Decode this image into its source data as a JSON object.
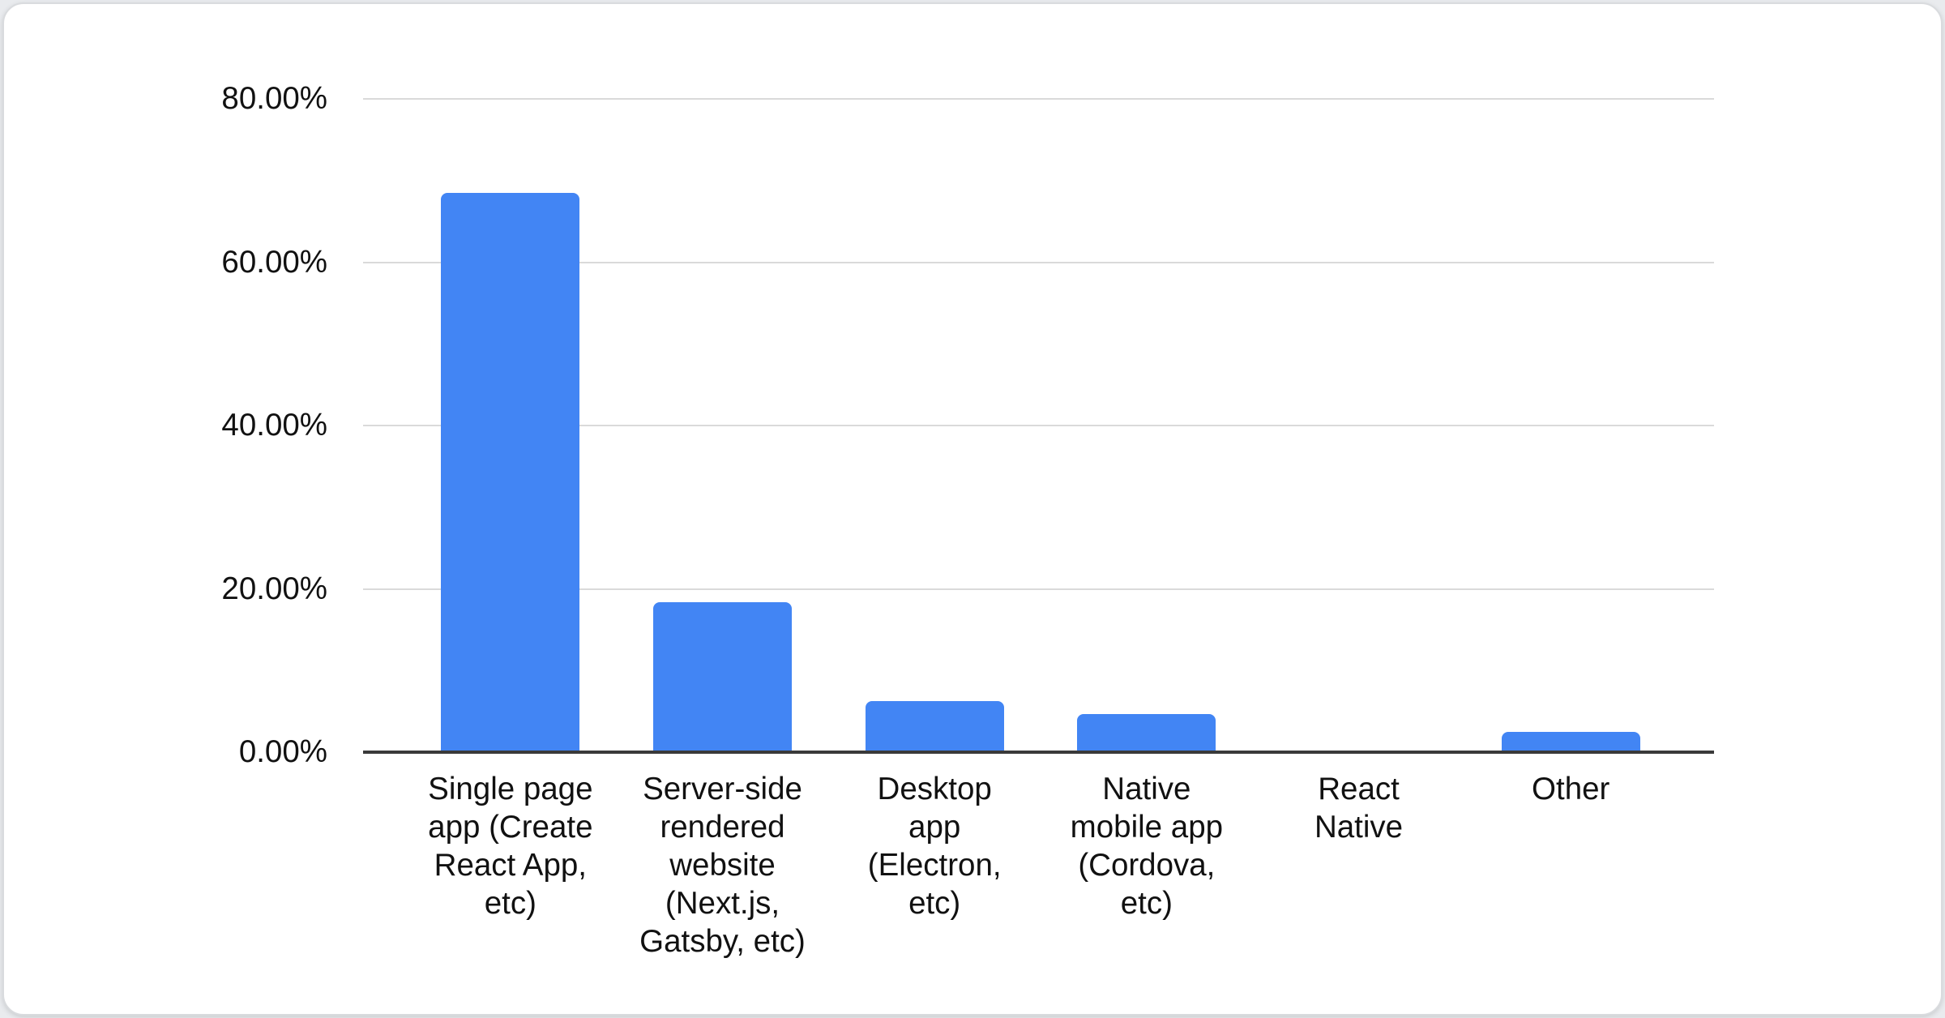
{
  "page": {
    "background_color": "#e9ebee"
  },
  "card": {
    "background_color": "#ffffff",
    "border_color": "#d9dbde"
  },
  "chart_data": {
    "type": "bar",
    "title": "",
    "xlabel": "",
    "ylabel": "",
    "legend": "none",
    "grid": true,
    "ylim": [
      0,
      80
    ],
    "bar_color": "#4285f4",
    "gridline_color": "#dadada",
    "axis_line_color": "#3a3a3a",
    "label_color": "#111111",
    "yticks": [
      {
        "value": 80,
        "label": "80.00%"
      },
      {
        "value": 60,
        "label": "60.00%"
      },
      {
        "value": 40,
        "label": "40.00%"
      },
      {
        "value": 20,
        "label": "20.00%"
      },
      {
        "value": 0,
        "label": "0.00%"
      }
    ],
    "categories": [
      "Single page app (Create React App, etc)",
      "Server-side rendered website (Next.js, Gatsby, etc)",
      "Desktop app (Electron, etc)",
      "Native mobile app (Cordova, etc)",
      "React Native",
      "Other"
    ],
    "category_lines": [
      [
        "Single page",
        "app (Create",
        "React App,",
        "etc)"
      ],
      [
        "Server-side",
        "rendered",
        "website",
        "(Next.js,",
        "Gatsby, etc)"
      ],
      [
        "Desktop",
        "app",
        "(Electron,",
        "etc)"
      ],
      [
        "Native",
        "mobile app",
        "(Cordova,",
        "etc)"
      ],
      [
        "React",
        "Native"
      ],
      [
        "Other"
      ]
    ],
    "values": [
      68.5,
      18.4,
      6.3,
      4.7,
      0,
      2.5
    ],
    "unit": "%"
  }
}
